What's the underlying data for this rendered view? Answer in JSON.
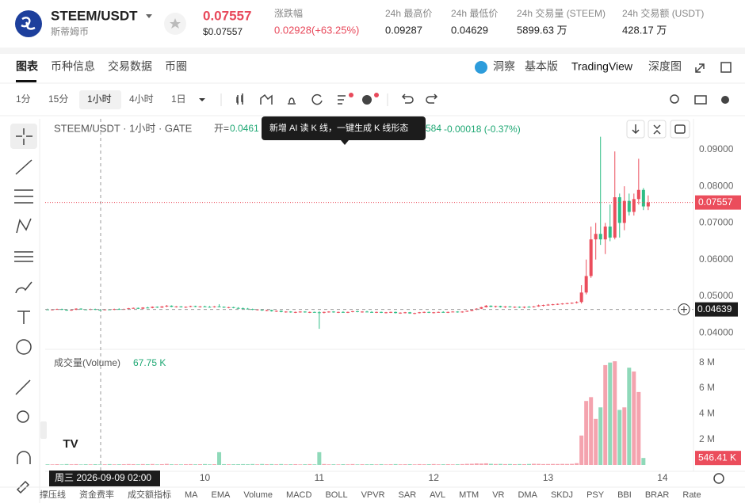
{
  "header": {
    "symbol": "STEEM/USDT",
    "name": "斯蒂姆币",
    "price": "0.07557",
    "price_usd": "$0.07557",
    "stats": [
      {
        "label": "涨跌幅",
        "value": "0.02928(+63.25%)"
      },
      {
        "label": "24h 最高价",
        "value": "0.09287"
      },
      {
        "label": "24h 最低价",
        "value": "0.04629"
      },
      {
        "label": "24h 交易量 (STEEM)",
        "value": "5899.63 万"
      },
      {
        "label": "24h 交易额 (USDT)",
        "value": "428.17 万"
      }
    ]
  },
  "tabs": [
    "图表",
    "币种信息",
    "交易数据",
    "币圈"
  ],
  "tabs_right": [
    "洞察",
    "基本版",
    "TradingView",
    "深度图"
  ],
  "intervals": [
    "1分",
    "15分",
    "1小时",
    "4小时",
    "1日"
  ],
  "chart_data": [
    {
      "type": "candlestick",
      "legend": {
        "symbol": "STEEM/USDT · 1小时 · GATE",
        "open_label": "开=",
        "open": "0.0461",
        "fragment": "584",
        "change": "-0.00018 (-0.37%)"
      },
      "tooltip": "新增 AI 读 K 线，一键生成 K 线形态",
      "crosshair_time": "周三 2026-09-09  02:00",
      "up_color": "#eb4d5c",
      "down_color": "#2dbd85",
      "xlim": [
        -0.5,
        135.5
      ],
      "xticks": [
        {
          "value": 33,
          "label": "10"
        },
        {
          "value": 57,
          "label": "11"
        },
        {
          "value": 81,
          "label": "12"
        },
        {
          "value": 105,
          "label": "13"
        },
        {
          "value": 129,
          "label": "14"
        }
      ],
      "ylim": [
        0.0355,
        0.0984
      ],
      "yticks": [
        {
          "value": 0.04,
          "label": "0.04000"
        },
        {
          "value": 0.05,
          "label": "0.05000"
        },
        {
          "value": 0.06,
          "label": "0.06000"
        },
        {
          "value": 0.07,
          "label": "0.07000"
        },
        {
          "value": 0.08,
          "label": "0.08000"
        },
        {
          "value": 0.09,
          "label": "0.09000"
        }
      ],
      "last_price": 0.07557,
      "crosshair_price": 0.04639,
      "candles": [
        [
          0.0464,
          0.0466,
          0.0462,
          0.0463
        ],
        [
          0.0463,
          0.0465,
          0.0461,
          0.0464
        ],
        [
          0.0464,
          0.0466,
          0.0463,
          0.0465
        ],
        [
          0.0465,
          0.0466,
          0.0462,
          0.0463
        ],
        [
          0.0463,
          0.0464,
          0.046,
          0.0461
        ],
        [
          0.0461,
          0.0464,
          0.046,
          0.0463
        ],
        [
          0.0463,
          0.0467,
          0.0462,
          0.0466
        ],
        [
          0.0466,
          0.0467,
          0.0463,
          0.0464
        ],
        [
          0.0464,
          0.0465,
          0.0462,
          0.0463
        ],
        [
          0.0463,
          0.0466,
          0.0462,
          0.0465
        ],
        [
          0.0465,
          0.0466,
          0.0462,
          0.0463
        ],
        [
          0.0463,
          0.0464,
          0.0461,
          0.0462
        ],
        [
          0.0462,
          0.0465,
          0.0461,
          0.0464
        ],
        [
          0.0464,
          0.0465,
          0.0462,
          0.0463
        ],
        [
          0.0463,
          0.0466,
          0.0462,
          0.0465
        ],
        [
          0.0465,
          0.0467,
          0.0463,
          0.0464
        ],
        [
          0.0464,
          0.0466,
          0.0463,
          0.0465
        ],
        [
          0.0465,
          0.0468,
          0.0464,
          0.0467
        ],
        [
          0.0467,
          0.0469,
          0.0466,
          0.0468
        ],
        [
          0.0468,
          0.0469,
          0.0465,
          0.0466
        ],
        [
          0.0466,
          0.047,
          0.0465,
          0.0469
        ],
        [
          0.0469,
          0.0471,
          0.0467,
          0.0468
        ],
        [
          0.0468,
          0.0472,
          0.0467,
          0.0471
        ],
        [
          0.0471,
          0.0472,
          0.0468,
          0.0469
        ],
        [
          0.0469,
          0.0473,
          0.0468,
          0.0472
        ],
        [
          0.0472,
          0.0476,
          0.047,
          0.0474
        ],
        [
          0.0474,
          0.0475,
          0.047,
          0.0471
        ],
        [
          0.0471,
          0.0473,
          0.0469,
          0.0472
        ],
        [
          0.0472,
          0.0473,
          0.0469,
          0.047
        ],
        [
          0.047,
          0.0472,
          0.0468,
          0.0471
        ],
        [
          0.0471,
          0.0474,
          0.047,
          0.0473
        ],
        [
          0.0473,
          0.0474,
          0.047,
          0.0471
        ],
        [
          0.0471,
          0.0473,
          0.0469,
          0.0472
        ],
        [
          0.0472,
          0.0474,
          0.047,
          0.0471
        ],
        [
          0.0471,
          0.0473,
          0.0469,
          0.047
        ],
        [
          0.047,
          0.0473,
          0.0469,
          0.0472
        ],
        [
          0.0472,
          0.0478,
          0.047,
          0.0471
        ],
        [
          0.0471,
          0.0472,
          0.0468,
          0.0469
        ],
        [
          0.0469,
          0.0471,
          0.0467,
          0.047
        ],
        [
          0.047,
          0.0471,
          0.0467,
          0.0468
        ],
        [
          0.0468,
          0.047,
          0.0466,
          0.0467
        ],
        [
          0.0467,
          0.0469,
          0.0465,
          0.0466
        ],
        [
          0.0466,
          0.0468,
          0.0464,
          0.0465
        ],
        [
          0.0465,
          0.0466,
          0.0462,
          0.0463
        ],
        [
          0.0463,
          0.0465,
          0.0461,
          0.0464
        ],
        [
          0.0464,
          0.0465,
          0.046,
          0.0461
        ],
        [
          0.0461,
          0.0463,
          0.0459,
          0.0462
        ],
        [
          0.0462,
          0.0463,
          0.0458,
          0.0459
        ],
        [
          0.0459,
          0.0461,
          0.0457,
          0.046
        ],
        [
          0.046,
          0.0461,
          0.0456,
          0.0457
        ],
        [
          0.0457,
          0.0459,
          0.0455,
          0.0458
        ],
        [
          0.0458,
          0.0459,
          0.0455,
          0.0456
        ],
        [
          0.0456,
          0.0458,
          0.0454,
          0.0457
        ],
        [
          0.0457,
          0.0459,
          0.0455,
          0.0458
        ],
        [
          0.0458,
          0.0459,
          0.0455,
          0.0456
        ],
        [
          0.0456,
          0.0458,
          0.0454,
          0.0457
        ],
        [
          0.0457,
          0.0458,
          0.0455,
          0.0456
        ],
        [
          0.0456,
          0.0459,
          0.0411,
          0.0455
        ],
        [
          0.0455,
          0.0458,
          0.0453,
          0.0457
        ],
        [
          0.0457,
          0.0459,
          0.0455,
          0.0458
        ],
        [
          0.0458,
          0.0459,
          0.0455,
          0.0456
        ],
        [
          0.0456,
          0.0458,
          0.0454,
          0.0457
        ],
        [
          0.0457,
          0.0459,
          0.0455,
          0.0456
        ],
        [
          0.0456,
          0.0458,
          0.0454,
          0.0457
        ],
        [
          0.0457,
          0.046,
          0.0456,
          0.0459
        ],
        [
          0.0459,
          0.046,
          0.0456,
          0.0457
        ],
        [
          0.0457,
          0.0459,
          0.0455,
          0.0458
        ],
        [
          0.0458,
          0.046,
          0.0456,
          0.0457
        ],
        [
          0.0457,
          0.0459,
          0.0455,
          0.0456
        ],
        [
          0.0456,
          0.0458,
          0.0454,
          0.0457
        ],
        [
          0.0457,
          0.0458,
          0.0454,
          0.0455
        ],
        [
          0.0455,
          0.0457,
          0.0453,
          0.0456
        ],
        [
          0.0456,
          0.0458,
          0.0454,
          0.0457
        ],
        [
          0.0457,
          0.0458,
          0.0453,
          0.0454
        ],
        [
          0.0454,
          0.0456,
          0.0452,
          0.0455
        ],
        [
          0.0455,
          0.0457,
          0.0453,
          0.0456
        ],
        [
          0.0456,
          0.0457,
          0.0452,
          0.0453
        ],
        [
          0.0453,
          0.0455,
          0.0451,
          0.0454
        ],
        [
          0.0454,
          0.0457,
          0.0453,
          0.0456
        ],
        [
          0.0456,
          0.0458,
          0.0454,
          0.0457
        ],
        [
          0.0457,
          0.0458,
          0.0454,
          0.0455
        ],
        [
          0.0455,
          0.0457,
          0.0453,
          0.0456
        ],
        [
          0.0456,
          0.0458,
          0.0455,
          0.0457
        ],
        [
          0.0457,
          0.0459,
          0.0455,
          0.0456
        ],
        [
          0.0456,
          0.0458,
          0.0454,
          0.0457
        ],
        [
          0.0457,
          0.0459,
          0.0456,
          0.0458
        ],
        [
          0.0458,
          0.0459,
          0.0455,
          0.0456
        ],
        [
          0.0456,
          0.0459,
          0.0455,
          0.0458
        ],
        [
          0.0458,
          0.0461,
          0.0457,
          0.046
        ],
        [
          0.046,
          0.0464,
          0.0459,
          0.0463
        ],
        [
          0.0463,
          0.0467,
          0.0462,
          0.0466
        ],
        [
          0.0466,
          0.0471,
          0.0465,
          0.047
        ],
        [
          0.047,
          0.0476,
          0.0469,
          0.0474
        ],
        [
          0.0474,
          0.0475,
          0.047,
          0.0471
        ],
        [
          0.0471,
          0.0474,
          0.0469,
          0.0473
        ],
        [
          0.0473,
          0.0474,
          0.0469,
          0.047
        ],
        [
          0.047,
          0.0473,
          0.0468,
          0.0472
        ],
        [
          0.0472,
          0.0473,
          0.0469,
          0.047
        ],
        [
          0.047,
          0.0472,
          0.0468,
          0.0471
        ],
        [
          0.0471,
          0.0472,
          0.0468,
          0.0469
        ],
        [
          0.0469,
          0.0472,
          0.0467,
          0.0471
        ],
        [
          0.0471,
          0.0473,
          0.0469,
          0.047
        ],
        [
          0.047,
          0.0473,
          0.0469,
          0.0472
        ],
        [
          0.0472,
          0.0477,
          0.0471,
          0.0475
        ],
        [
          0.0475,
          0.0477,
          0.0472,
          0.0476
        ],
        [
          0.0476,
          0.0479,
          0.0474,
          0.0477
        ],
        [
          0.0477,
          0.0479,
          0.0475,
          0.0478
        ],
        [
          0.0478,
          0.048,
          0.0476,
          0.0479
        ],
        [
          0.0479,
          0.0481,
          0.0477,
          0.048
        ],
        [
          0.048,
          0.0482,
          0.0478,
          0.0481
        ],
        [
          0.0481,
          0.0483,
          0.0479,
          0.0482
        ],
        [
          0.0482,
          0.0486,
          0.048,
          0.0484
        ],
        [
          0.0484,
          0.053,
          0.048,
          0.051
        ],
        [
          0.051,
          0.06,
          0.0505,
          0.0555
        ],
        [
          0.0555,
          0.069,
          0.055,
          0.0655
        ],
        [
          0.0655,
          0.07,
          0.06,
          0.067
        ],
        [
          0.067,
          0.0935,
          0.064,
          0.0655
        ],
        [
          0.0655,
          0.07,
          0.0615,
          0.069
        ],
        [
          0.069,
          0.075,
          0.065,
          0.066
        ],
        [
          0.066,
          0.0895,
          0.0655,
          0.077
        ],
        [
          0.077,
          0.078,
          0.066,
          0.07
        ],
        [
          0.07,
          0.08,
          0.068,
          0.076
        ],
        [
          0.076,
          0.078,
          0.072,
          0.073
        ],
        [
          0.073,
          0.078,
          0.072,
          0.0765
        ],
        [
          0.0765,
          0.0875,
          0.075,
          0.079
        ],
        [
          0.079,
          0.0795,
          0.0735,
          0.0745
        ],
        [
          0.0745,
          0.0775,
          0.0735,
          0.07557
        ]
      ]
    },
    {
      "type": "bar",
      "title": "成交量(Volume)",
      "current": "67.75 K",
      "up_color": "#f4a3ae",
      "down_color": "#8fd9b9",
      "ylim": [
        0,
        8600000
      ],
      "yticks": [
        {
          "value": 2000000,
          "label": "2 M"
        },
        {
          "value": 4000000,
          "label": "4 M"
        },
        {
          "value": 6000000,
          "label": "6 M"
        },
        {
          "value": 8000000,
          "label": "8 M"
        }
      ],
      "last_value": {
        "value": 546410,
        "label": "546.41 K"
      },
      "values": [
        52000,
        48000,
        61000,
        45000,
        70000,
        55000,
        66000,
        43000,
        58000,
        50000,
        62000,
        47000,
        53000,
        67750,
        49000,
        56000,
        60000,
        72000,
        64000,
        51000,
        69000,
        58000,
        74000,
        46000,
        63000,
        85000,
        57000,
        52000,
        48000,
        60000,
        66000,
        53000,
        59000,
        71000,
        50000,
        62000,
        1000000,
        64000,
        55000,
        58000,
        61000,
        67000,
        59000,
        73000,
        52000,
        76000,
        60000,
        68000,
        54000,
        71000,
        49000,
        57000,
        63000,
        45000,
        58000,
        66000,
        52000,
        1000000,
        74000,
        51000,
        56000,
        48000,
        61000,
        53000,
        69000,
        47000,
        58000,
        55000,
        62000,
        50000,
        64000,
        46000,
        57000,
        68000,
        52000,
        59000,
        63000,
        49000,
        66000,
        55000,
        60000,
        71000,
        53000,
        58000,
        62000,
        50000,
        57000,
        69000,
        88000,
        95000,
        120000,
        110000,
        130000,
        90000,
        76000,
        82000,
        68000,
        73000,
        61000,
        70000,
        64000,
        78000,
        92000,
        85000,
        70000,
        74000,
        80000,
        76000,
        83000,
        79000,
        88000,
        140000,
        2300000,
        5000000,
        5300000,
        3600000,
        4500000,
        7800000,
        8000000,
        8100000,
        4300000,
        4500000,
        7600000,
        7300000,
        5700000,
        546410
      ]
    }
  ],
  "indicators": [
    "撑压线",
    "资金费率",
    "成交额指标",
    "MA",
    "EMA",
    "Volume",
    "MACD",
    "BOLL",
    "VPVR",
    "SAR",
    "AVL",
    "MTM",
    "VR",
    "DMA",
    "SKDJ",
    "PSY",
    "BBI",
    "BRAR",
    "Rate"
  ]
}
